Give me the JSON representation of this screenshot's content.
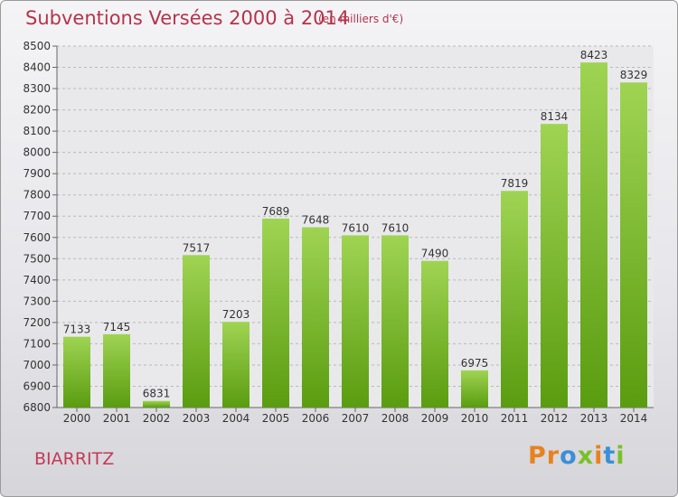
{
  "header": {
    "title": "Subventions Versées 2000 à 2014",
    "subtitle": "(en milliers d'€)"
  },
  "footer": {
    "city": "BIARRITZ",
    "logo_text": "Proxiti"
  },
  "colors": {
    "title": "#b5334b",
    "bar_top": "#9fd453",
    "bar_bottom": "#5a9c10",
    "logo": [
      "#e8821e",
      "#e8821e",
      "#3a8fd8",
      "#7bbf2a",
      "#e8821e",
      "#3a8fd8",
      "#7bbf2a"
    ]
  },
  "chart_data": {
    "type": "bar",
    "title": "Subventions Versées 2000 à 2014",
    "subtitle": "(en milliers d'€)",
    "categories": [
      "2000",
      "2001",
      "2002",
      "2003",
      "2004",
      "2005",
      "2006",
      "2007",
      "2008",
      "2009",
      "2010",
      "2011",
      "2012",
      "2013",
      "2014"
    ],
    "values": [
      7133,
      7145,
      6831,
      7517,
      7203,
      7689,
      7648,
      7610,
      7610,
      7490,
      6975,
      7819,
      8134,
      8423,
      8329
    ],
    "ylim": [
      6800,
      8500
    ],
    "yticks": [
      6800,
      6900,
      7000,
      7100,
      7200,
      7300,
      7400,
      7500,
      7600,
      7700,
      7800,
      7900,
      8000,
      8100,
      8200,
      8300,
      8400,
      8500
    ],
    "grid": true,
    "xlabel": "",
    "ylabel": ""
  }
}
